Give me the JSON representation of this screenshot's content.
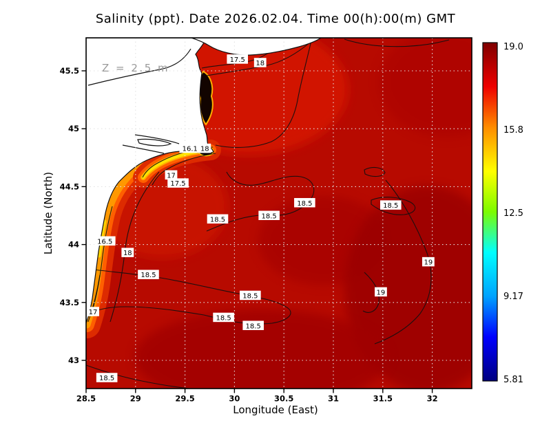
{
  "chart_data": {
    "type": "heatmap",
    "title": "Salinity (ppt). Date 2026.02.04. Time 00(h):00(m) GMT",
    "xlabel": "Longitude (East)",
    "ylabel": "Latitude (North)",
    "depth_label": "Z = 2.5 m",
    "field_info": {
      "variable": "Salinity",
      "units": "ppt",
      "date": "2026.02.04",
      "time": "00(h):00(m)",
      "timezone": "GMT",
      "depth_m": 2.5
    },
    "xlim": [
      28.5,
      32.4
    ],
    "ylim": [
      42.76,
      45.785
    ],
    "x_ticks": [
      "28.5",
      "29",
      "29.5",
      "30",
      "30.5",
      "31",
      "31.5",
      "32"
    ],
    "y_ticks": [
      "45.5",
      "45",
      "44.5",
      "44",
      "43.5",
      "43"
    ],
    "grid": "dotted",
    "colorbar": {
      "position": "right",
      "colormap": "jet",
      "min": 5.81,
      "max": 19.0,
      "ticks": [
        "19.0",
        "15.8",
        "12.5",
        "9.17",
        "5.81"
      ]
    },
    "contour_levels": [
      16.1,
      16.5,
      17,
      17.5,
      18,
      18.5,
      19
    ],
    "contour_labels": [
      {
        "value": "17.5",
        "lon": 30.03,
        "lat": 45.6
      },
      {
        "value": "18",
        "lon": 30.26,
        "lat": 45.57
      },
      {
        "value": "16.1",
        "lon": 29.55,
        "lat": 44.83
      },
      {
        "value": "18",
        "lon": 29.7,
        "lat": 44.83
      },
      {
        "value": "17",
        "lon": 29.36,
        "lat": 44.6
      },
      {
        "value": "17.5",
        "lon": 29.43,
        "lat": 44.53
      },
      {
        "value": "18.5",
        "lon": 30.71,
        "lat": 44.36
      },
      {
        "value": "18.5",
        "lon": 31.58,
        "lat": 44.34
      },
      {
        "value": "18.5",
        "lon": 29.83,
        "lat": 44.22
      },
      {
        "value": "18.5",
        "lon": 30.35,
        "lat": 44.25
      },
      {
        "value": "16.5",
        "lon": 28.69,
        "lat": 44.03
      },
      {
        "value": "18",
        "lon": 28.92,
        "lat": 43.93
      },
      {
        "value": "19",
        "lon": 31.96,
        "lat": 43.85
      },
      {
        "value": "18.5",
        "lon": 29.13,
        "lat": 43.74
      },
      {
        "value": "19",
        "lon": 31.48,
        "lat": 43.59
      },
      {
        "value": "18.5",
        "lon": 30.16,
        "lat": 43.56
      },
      {
        "value": "17",
        "lon": 28.57,
        "lat": 43.42
      },
      {
        "value": "18.5",
        "lon": 29.89,
        "lat": 43.37
      },
      {
        "value": "18.5",
        "lon": 30.19,
        "lat": 43.3
      },
      {
        "value": "18.5",
        "lon": 28.71,
        "lat": 42.85
      }
    ]
  }
}
